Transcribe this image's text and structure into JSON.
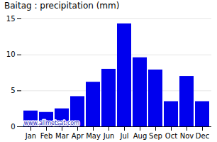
{
  "chart_data": {
    "type": "bar",
    "title": "Baitag : precipitation (mm)",
    "categories": [
      "Jan",
      "Feb",
      "Mar",
      "Apr",
      "May",
      "Jun",
      "Jul",
      "Aug",
      "Sep",
      "Oct",
      "Nov",
      "Dec"
    ],
    "values": [
      2.2,
      2.0,
      2.5,
      4.2,
      6.2,
      8.0,
      14.3,
      9.6,
      7.9,
      3.5,
      7.0,
      3.5
    ],
    "color": "#0000ee",
    "ylim": [
      0,
      15
    ],
    "yticks": [
      0,
      5,
      10,
      15
    ],
    "grid": true,
    "annotations": [
      "www.allmetsat.com"
    ]
  }
}
